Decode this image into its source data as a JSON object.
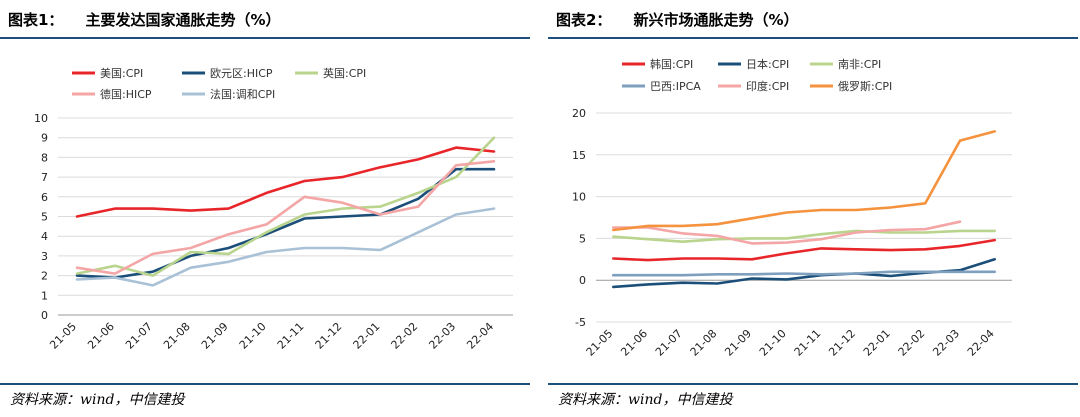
{
  "sections": [
    {
      "title_label": "图表1：",
      "title_text": "主要发达国家通胀走势（%）",
      "source": "资料来源：wind，中信建投"
    },
    {
      "title_label": "图表2：",
      "title_text": "新兴市场通胀走势（%）",
      "source": "资料来源：wind，中信建投"
    }
  ],
  "chart_data": [
    {
      "type": "line",
      "title": "主要发达国家通胀走势（%）",
      "xlabel": "",
      "ylabel": "",
      "categories": [
        "21-05",
        "21-06",
        "21-07",
        "21-08",
        "21-09",
        "21-10",
        "21-11",
        "21-12",
        "22-01",
        "22-02",
        "22-03",
        "22-04"
      ],
      "ylim": [
        0,
        10
      ],
      "yticks": [
        0,
        1,
        2,
        3,
        4,
        5,
        6,
        7,
        8,
        9,
        10
      ],
      "grid": true,
      "legend": "top-left",
      "series": [
        {
          "name": "美国:CPI",
          "color": "#e8262a",
          "values": [
            5.0,
            5.4,
            5.4,
            5.3,
            5.4,
            6.2,
            6.8,
            7.0,
            7.5,
            7.9,
            8.5,
            8.3
          ]
        },
        {
          "name": "欧元区:HICP",
          "color": "#1b4f7a",
          "values": [
            2.0,
            1.9,
            2.2,
            3.0,
            3.4,
            4.1,
            4.9,
            5.0,
            5.1,
            5.9,
            7.4,
            7.4
          ]
        },
        {
          "name": "英国:CPI",
          "color": "#b9d48c",
          "values": [
            2.1,
            2.5,
            2.0,
            3.2,
            3.1,
            4.2,
            5.1,
            5.4,
            5.5,
            6.2,
            7.0,
            9.0
          ]
        },
        {
          "name": "德国:HICP",
          "color": "#f4a6a6",
          "values": [
            2.4,
            2.1,
            3.1,
            3.4,
            4.1,
            4.6,
            6.0,
            5.7,
            5.1,
            5.5,
            7.6,
            7.8
          ]
        },
        {
          "name": "法国:调和CPI",
          "color": "#a9c1d6",
          "values": [
            1.8,
            1.9,
            1.5,
            2.4,
            2.7,
            3.2,
            3.4,
            3.4,
            3.3,
            4.2,
            5.1,
            5.4
          ]
        }
      ]
    },
    {
      "type": "line",
      "title": "新兴市场通胀走势（%）",
      "xlabel": "",
      "ylabel": "",
      "categories": [
        "21-05",
        "21-06",
        "21-07",
        "21-08",
        "21-09",
        "21-10",
        "21-11",
        "21-12",
        "22-01",
        "22-02",
        "22-03",
        "22-04"
      ],
      "ylim": [
        -5,
        20
      ],
      "yticks": [
        -5,
        0,
        5,
        10,
        15,
        20
      ],
      "grid": true,
      "legend": "top-left",
      "series": [
        {
          "name": "韩国:CPI",
          "color": "#e8262a",
          "values": [
            2.6,
            2.4,
            2.6,
            2.6,
            2.5,
            3.2,
            3.8,
            3.7,
            3.6,
            3.7,
            4.1,
            4.8
          ]
        },
        {
          "name": "日本:CPI",
          "color": "#1b4f7a",
          "values": [
            -0.8,
            -0.5,
            -0.3,
            -0.4,
            0.2,
            0.1,
            0.6,
            0.8,
            0.5,
            0.9,
            1.2,
            2.5
          ]
        },
        {
          "name": "南非:CPI",
          "color": "#b9d48c",
          "values": [
            5.2,
            4.9,
            4.6,
            4.9,
            5.0,
            5.0,
            5.5,
            5.9,
            5.7,
            5.7,
            5.9,
            5.9
          ]
        },
        {
          "name": "巴西:IPCA",
          "color": "#7f9fbf",
          "values": [
            0.6,
            0.6,
            0.6,
            0.7,
            0.7,
            0.8,
            0.7,
            0.8,
            1.0,
            1.0,
            1.0,
            1.0
          ]
        },
        {
          "name": "印度:CPI",
          "color": "#f4a6a6",
          "values": [
            6.3,
            6.3,
            5.6,
            5.3,
            4.4,
            4.5,
            4.9,
            5.7,
            6.0,
            6.1,
            7.0,
            null
          ]
        },
        {
          "name": "俄罗斯:CPI",
          "color": "#f5923e",
          "values": [
            6.0,
            6.5,
            6.5,
            6.7,
            7.4,
            8.1,
            8.4,
            8.4,
            8.7,
            9.2,
            16.7,
            17.8
          ]
        }
      ]
    }
  ]
}
